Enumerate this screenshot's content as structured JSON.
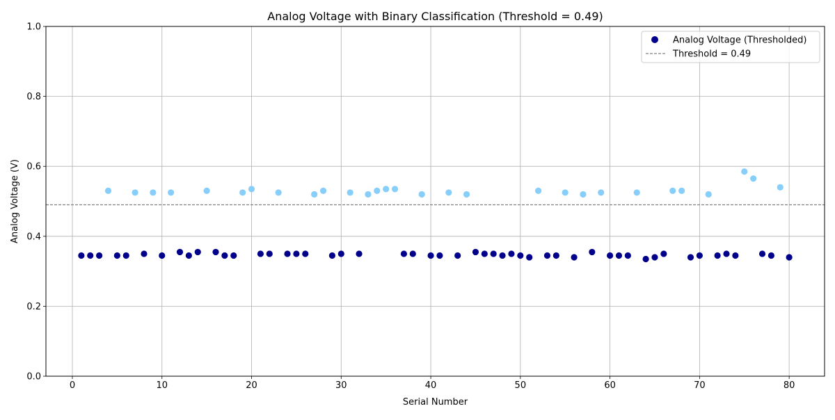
{
  "chart_data": {
    "type": "scatter",
    "title": "Analog Voltage with Binary Classification (Threshold = 0.49)",
    "xlabel": "Serial Number",
    "ylabel": "Analog Voltage (V)",
    "xlim": [
      -2.95,
      83.95
    ],
    "ylim": [
      0.0,
      1.0
    ],
    "x_ticks": [
      0,
      10,
      20,
      30,
      40,
      50,
      60,
      70,
      80
    ],
    "x_tick_labels": [
      "0",
      "10",
      "20",
      "30",
      "40",
      "50",
      "60",
      "70",
      "80"
    ],
    "y_ticks": [
      0.0,
      0.2,
      0.4,
      0.6,
      0.8,
      1.0
    ],
    "y_tick_labels": [
      "0.0",
      "0.2",
      "0.4",
      "0.6",
      "0.8",
      "1.0"
    ],
    "grid": true,
    "legend_position": "top-right",
    "threshold": {
      "value": 0.49,
      "label": "Threshold = 0.49",
      "style": "dashed",
      "color": "#808080"
    },
    "series": [
      {
        "name": "Analog Voltage (Thresholded)",
        "legend_color": "#00008b",
        "color_below_threshold": "#00008b",
        "color_above_threshold": "#87cefa",
        "points": [
          [
            1,
            0.345
          ],
          [
            2,
            0.345
          ],
          [
            3,
            0.345
          ],
          [
            4,
            0.53
          ],
          [
            5,
            0.345
          ],
          [
            6,
            0.345
          ],
          [
            7,
            0.525
          ],
          [
            8,
            0.35
          ],
          [
            9,
            0.525
          ],
          [
            10,
            0.345
          ],
          [
            11,
            0.525
          ],
          [
            12,
            0.355
          ],
          [
            13,
            0.345
          ],
          [
            14,
            0.355
          ],
          [
            15,
            0.53
          ],
          [
            16,
            0.355
          ],
          [
            17,
            0.345
          ],
          [
            18,
            0.345
          ],
          [
            19,
            0.525
          ],
          [
            20,
            0.535
          ],
          [
            21,
            0.35
          ],
          [
            22,
            0.35
          ],
          [
            23,
            0.525
          ],
          [
            24,
            0.35
          ],
          [
            25,
            0.35
          ],
          [
            26,
            0.35
          ],
          [
            27,
            0.52
          ],
          [
            28,
            0.53
          ],
          [
            29,
            0.345
          ],
          [
            30,
            0.35
          ],
          [
            31,
            0.525
          ],
          [
            32,
            0.35
          ],
          [
            33,
            0.52
          ],
          [
            34,
            0.53
          ],
          [
            35,
            0.535
          ],
          [
            36,
            0.535
          ],
          [
            37,
            0.35
          ],
          [
            38,
            0.35
          ],
          [
            39,
            0.52
          ],
          [
            40,
            0.345
          ],
          [
            41,
            0.345
          ],
          [
            42,
            0.525
          ],
          [
            43,
            0.345
          ],
          [
            44,
            0.52
          ],
          [
            45,
            0.355
          ],
          [
            46,
            0.35
          ],
          [
            47,
            0.35
          ],
          [
            48,
            0.345
          ],
          [
            49,
            0.35
          ],
          [
            50,
            0.345
          ],
          [
            51,
            0.34
          ],
          [
            52,
            0.53
          ],
          [
            53,
            0.345
          ],
          [
            54,
            0.345
          ],
          [
            55,
            0.525
          ],
          [
            56,
            0.34
          ],
          [
            57,
            0.52
          ],
          [
            58,
            0.355
          ],
          [
            59,
            0.525
          ],
          [
            60,
            0.345
          ],
          [
            61,
            0.345
          ],
          [
            62,
            0.345
          ],
          [
            63,
            0.525
          ],
          [
            64,
            0.335
          ],
          [
            65,
            0.34
          ],
          [
            66,
            0.35
          ],
          [
            67,
            0.53
          ],
          [
            68,
            0.53
          ],
          [
            69,
            0.34
          ],
          [
            70,
            0.345
          ],
          [
            71,
            0.52
          ],
          [
            72,
            0.345
          ],
          [
            73,
            0.35
          ],
          [
            74,
            0.345
          ],
          [
            75,
            0.585
          ],
          [
            76,
            0.565
          ],
          [
            77,
            0.35
          ],
          [
            78,
            0.345
          ],
          [
            79,
            0.54
          ],
          [
            80,
            0.34
          ]
        ]
      }
    ]
  }
}
